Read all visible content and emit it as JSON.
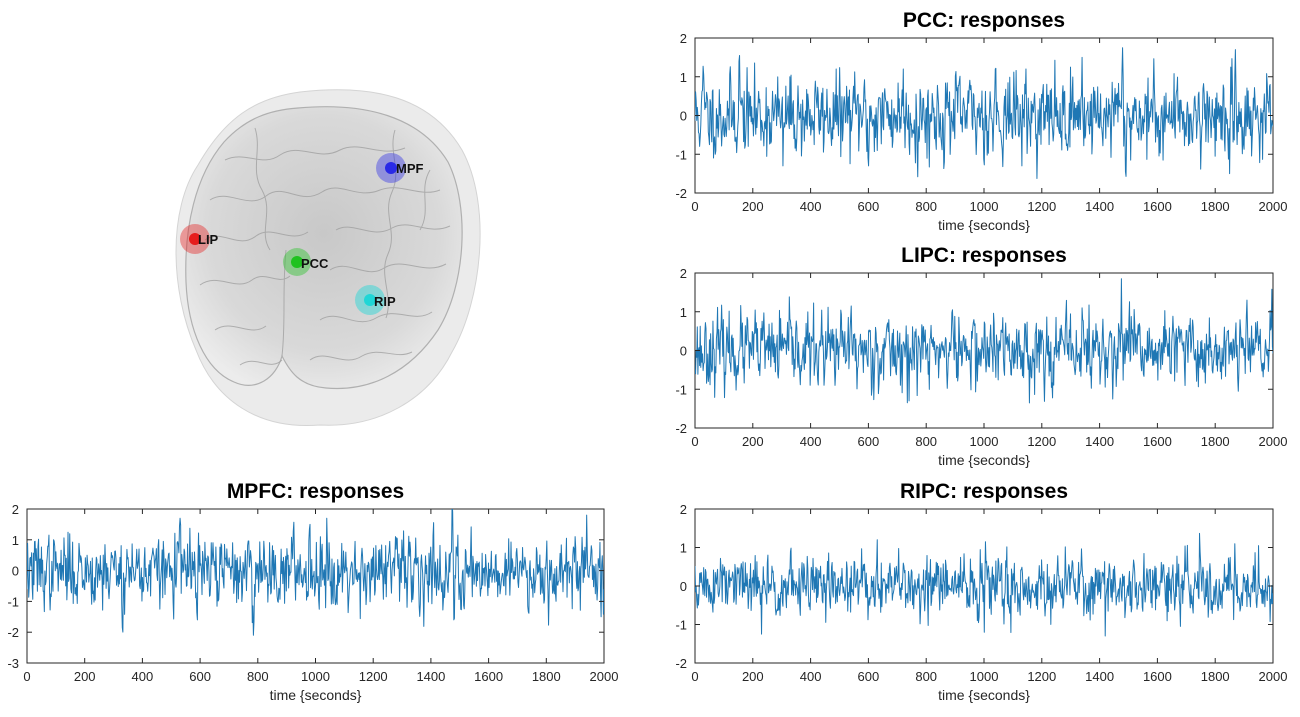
{
  "brain": {
    "rois": [
      {
        "label": "MPF",
        "color": "#2a2ae6"
      },
      {
        "label": "LIP",
        "color": "#e61c1c"
      },
      {
        "label": "PCC",
        "color": "#1fc21f"
      },
      {
        "label": "RIP",
        "color": "#1fd6d6"
      }
    ]
  },
  "chart_data": [
    {
      "id": "pcc",
      "type": "line",
      "title": "PCC: responses",
      "xlabel": "time {seconds}",
      "ylabel": "",
      "xlim": [
        0,
        2000
      ],
      "ylim": [
        -2,
        2
      ],
      "xticks": [
        0,
        200,
        400,
        600,
        800,
        1000,
        1200,
        1400,
        1600,
        1800,
        2000
      ],
      "yticks": [
        -2,
        -1,
        0,
        1,
        2
      ],
      "grid": false,
      "series": [
        {
          "color": "#1f77b4",
          "n_samples": 1000,
          "seed": 11,
          "sd": 0.5,
          "peaks": [
            [
              1480,
              1.75
            ],
            [
              1870,
              1.7
            ],
            [
              155,
              1.55
            ],
            [
              30,
              1.05
            ],
            [
              1340,
              1.5
            ],
            [
              1040,
              1.2
            ],
            [
              720,
              1.2
            ],
            [
              770,
              -1.58
            ],
            [
              1490,
              -1.45
            ],
            [
              1850,
              -1.5
            ],
            [
              600,
              -1.3
            ],
            [
              305,
              -1.3
            ]
          ]
        }
      ]
    },
    {
      "id": "lipc",
      "type": "line",
      "title": "LIPC: responses",
      "xlabel": "time {seconds}",
      "ylabel": "",
      "xlim": [
        0,
        2000
      ],
      "ylim": [
        -2,
        2
      ],
      "xticks": [
        0,
        200,
        400,
        600,
        800,
        1000,
        1200,
        1400,
        1600,
        1800,
        2000
      ],
      "yticks": [
        -2,
        -1,
        0,
        1,
        2
      ],
      "grid": false,
      "series": [
        {
          "color": "#1f77b4",
          "n_samples": 1000,
          "seed": 23,
          "sd": 0.45,
          "peaks": [
            [
              1475,
              1.85
            ],
            [
              1910,
              1.3
            ],
            [
              1340,
              1.1
            ],
            [
              540,
              1.15
            ],
            [
              890,
              1.05
            ],
            [
              740,
              -1.3
            ],
            [
              1445,
              -1.25
            ],
            [
              1880,
              -1.05
            ],
            [
              485,
              -0.9
            ]
          ]
        }
      ]
    },
    {
      "id": "mpfc",
      "type": "line",
      "title": "MPFC: responses",
      "xlabel": "time {seconds}",
      "ylabel": "",
      "xlim": [
        0,
        2000
      ],
      "ylim": [
        -3,
        2
      ],
      "xticks": [
        0,
        200,
        400,
        600,
        800,
        1000,
        1200,
        1400,
        1600,
        1800,
        2000
      ],
      "yticks": [
        -3,
        -2,
        -1,
        0,
        1,
        2
      ],
      "grid": false,
      "series": [
        {
          "color": "#1f77b4",
          "n_samples": 1000,
          "seed": 37,
          "sd": 0.55,
          "peaks": [
            [
              1475,
              1.9
            ],
            [
              1940,
              1.8
            ],
            [
              530,
              1.7
            ],
            [
              1040,
              1.7
            ],
            [
              980,
              1.5
            ],
            [
              785,
              -2.1
            ],
            [
              330,
              -1.85
            ],
            [
              590,
              -1.6
            ],
            [
              1480,
              -1.6
            ],
            [
              1990,
              -1.5
            ]
          ]
        }
      ]
    },
    {
      "id": "ripc",
      "type": "line",
      "title": "RIPC: responses",
      "xlabel": "time {seconds}",
      "ylabel": "",
      "xlim": [
        0,
        2000
      ],
      "ylim": [
        -2,
        2
      ],
      "xticks": [
        0,
        200,
        400,
        600,
        800,
        1000,
        1200,
        1400,
        1600,
        1800,
        2000
      ],
      "yticks": [
        -2,
        -1,
        0,
        1,
        2
      ],
      "grid": false,
      "series": [
        {
          "color": "#1f77b4",
          "n_samples": 1000,
          "seed": 51,
          "sd": 0.38,
          "peaks": [
            [
              630,
              1.2
            ],
            [
              1005,
              1.15
            ],
            [
              1950,
              1.05
            ],
            [
              1420,
              0.95
            ],
            [
              1000,
              -1.2
            ],
            [
              1420,
              -1.3
            ],
            [
              230,
              -1.25
            ],
            [
              1680,
              -1.05
            ],
            [
              980,
              -0.95
            ]
          ]
        }
      ]
    }
  ]
}
